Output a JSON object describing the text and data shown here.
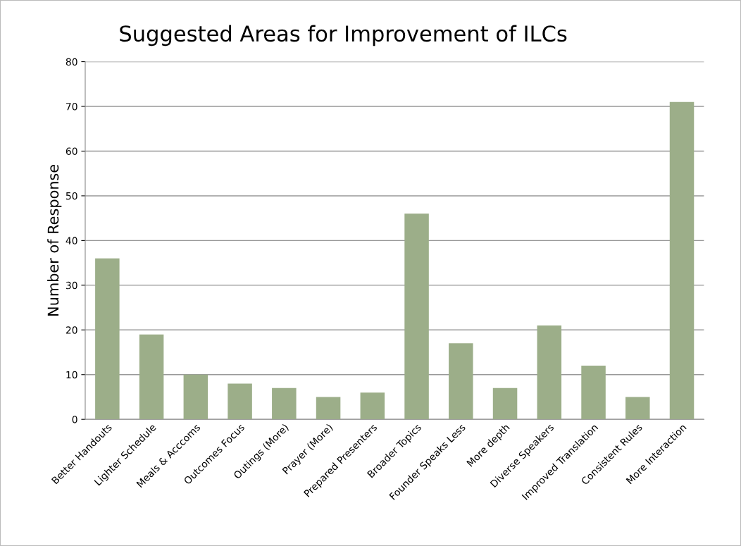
{
  "chart_data": {
    "type": "bar",
    "title": "Suggested Areas for Improvement of ILCs",
    "ylabel": "Number of Response",
    "categories": [
      "Better Handouts",
      "Lighter Schedule",
      "Meals & Acccoms",
      "Outcomes Focus",
      "Outings (More)",
      "Prayer (More)",
      "Prepared Presenters",
      "Broader Topics",
      "Founder Speaks Less",
      "More depth",
      "Diverse Speakers",
      "Improved Translation",
      "Consistent Rules",
      "More Interaction"
    ],
    "values": [
      36,
      19,
      10,
      8,
      7,
      5,
      6,
      46,
      17,
      7,
      21,
      12,
      5,
      71
    ],
    "color": "#9cae89",
    "ylim": [
      0,
      80
    ],
    "yticks": [
      0,
      10,
      20,
      30,
      40,
      50,
      60,
      70,
      80
    ],
    "grid": "y",
    "legend": false
  }
}
